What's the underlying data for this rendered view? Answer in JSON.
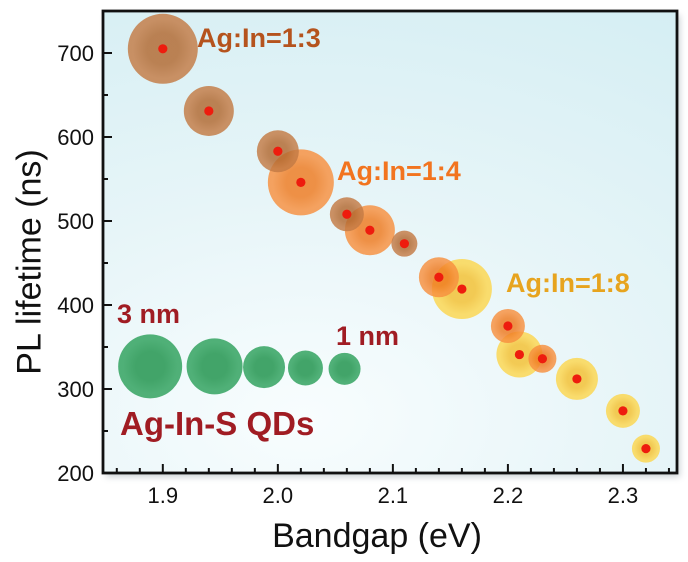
{
  "chart_data": {
    "type": "scatter",
    "subtype": "bubble",
    "title": "",
    "xlabel": "Bandgap (eV)",
    "ylabel": "PL lifetime (ns)",
    "xlim": [
      1.848,
      2.347
    ],
    "ylim": [
      200,
      750
    ],
    "xticks": [
      1.9,
      2.0,
      2.1,
      2.2,
      2.3
    ],
    "x_minor_step": 0.02,
    "yticks": [
      200,
      300,
      400,
      500,
      600,
      700
    ],
    "y_minor_step": 50,
    "grid": false,
    "legend_position": "in-plot annotations",
    "plot_background": {
      "center": "#f8fdfe",
      "edge": "#d4eef3"
    },
    "axis_color": "#111111",
    "marker_dot_color": "#ee1c0e",
    "series": [
      {
        "name": "Ag:In=1:3",
        "label_color": "#b5531d",
        "bubble_color": "#c37a44",
        "bubble_color_center": "#b2682f",
        "points": [
          {
            "x": 1.9,
            "y": 705,
            "r": 35
          },
          {
            "x": 1.94,
            "y": 631,
            "r": 25
          },
          {
            "x": 2.0,
            "y": 583,
            "r": 21
          },
          {
            "x": 2.06,
            "y": 508,
            "r": 17
          },
          {
            "x": 2.11,
            "y": 473,
            "r": 13
          }
        ]
      },
      {
        "name": "Ag:In=1:4",
        "label_color": "#f2741f",
        "bubble_color": "#f78f3e",
        "bubble_color_center": "#ef7a1f",
        "points": [
          {
            "x": 2.02,
            "y": 546,
            "r": 33
          },
          {
            "x": 2.08,
            "y": 489,
            "r": 25
          },
          {
            "x": 2.14,
            "y": 433,
            "r": 20
          },
          {
            "x": 2.2,
            "y": 375,
            "r": 17
          },
          {
            "x": 2.23,
            "y": 336,
            "r": 14
          }
        ]
      },
      {
        "name": "Ag:In=1:8",
        "label_color": "#e7a41e",
        "bubble_color": "#fcd64e",
        "bubble_color_center": "#f4c02f",
        "points": [
          {
            "x": 2.16,
            "y": 419,
            "r": 30
          },
          {
            "x": 2.21,
            "y": 341,
            "r": 23
          },
          {
            "x": 2.26,
            "y": 312,
            "r": 21
          },
          {
            "x": 2.3,
            "y": 274,
            "r": 17
          },
          {
            "x": 2.32,
            "y": 229,
            "r": 14
          }
        ]
      }
    ],
    "size_legend": {
      "big_label": "3 nm",
      "small_label": "1 nm",
      "label_color": "#a01c23",
      "bubble_color": "#3ea869",
      "bubble_color_center": "#2f9b59",
      "points": [
        {
          "x": 1.889,
          "y": 327,
          "r": 32
        },
        {
          "x": 1.945,
          "y": 327,
          "r": 28
        },
        {
          "x": 1.988,
          "y": 326,
          "r": 21
        },
        {
          "x": 2.024,
          "y": 325,
          "r": 17.5
        },
        {
          "x": 2.058,
          "y": 324,
          "r": 16
        }
      ]
    },
    "annotation_caption": "Ag-In-S QDs",
    "annotation_caption_color": "#a01c23"
  }
}
